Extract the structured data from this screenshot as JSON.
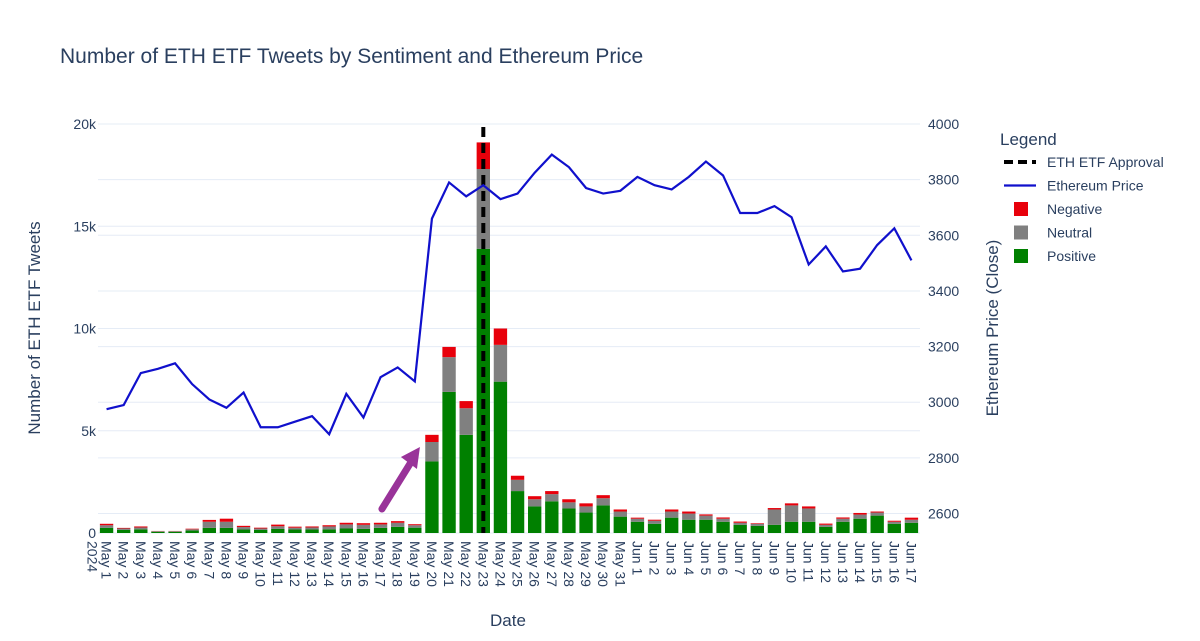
{
  "chart_data": {
    "type": "bar",
    "title": "Number of ETH ETF Tweets by Sentiment and Ethereum Price",
    "xlabel": "Date",
    "ylabel": "Number of ETH ETF Tweets",
    "y2label": "Ethereum Price (Close)",
    "ylim": [
      0,
      20000
    ],
    "y2lim": [
      2530,
      4000
    ],
    "yticks": [
      0,
      5000,
      10000,
      15000,
      20000
    ],
    "yticklabels": [
      "0",
      "5k",
      "10k",
      "15k",
      "20k"
    ],
    "y2ticks": [
      2600,
      2800,
      3000,
      3200,
      3400,
      3600,
      3800,
      4000
    ],
    "barmode": "stack",
    "categories": [
      "May 1\n2024",
      "May 2",
      "May 3",
      "May 4",
      "May 5",
      "May 6",
      "May 7",
      "May 8",
      "May 9",
      "May 10",
      "May 11",
      "May 12",
      "May 13",
      "May 14",
      "May 15",
      "May 16",
      "May 17",
      "May 18",
      "May 19",
      "May 20",
      "May 21",
      "May 22",
      "May 23",
      "May 24",
      "May 25",
      "May 26",
      "May 27",
      "May 28",
      "May 29",
      "May 30",
      "May 31",
      "Jun 1",
      "Jun 2",
      "Jun 3",
      "Jun 4",
      "Jun 5",
      "Jun 6",
      "Jun 7",
      "Jun 8",
      "Jun 9",
      "Jun 10",
      "Jun 11",
      "Jun 12",
      "Jun 13",
      "Jun 14",
      "Jun 15",
      "Jun 16",
      "Jun 17"
    ],
    "series": [
      {
        "name": "Positive",
        "color": "#008000",
        "values": [
          250,
          150,
          180,
          60,
          60,
          120,
          250,
          250,
          170,
          150,
          200,
          170,
          170,
          180,
          220,
          200,
          250,
          300,
          260,
          3500,
          6900,
          4800,
          13900,
          7400,
          2050,
          1300,
          1550,
          1200,
          1000,
          1350,
          800,
          550,
          450,
          750,
          650,
          650,
          550,
          400,
          350,
          400,
          550,
          550,
          300,
          550,
          700,
          850,
          450,
          500
        ]
      },
      {
        "name": "Neutral",
        "color": "#808080",
        "values": [
          130,
          70,
          90,
          30,
          30,
          60,
          300,
          300,
          120,
          70,
          130,
          90,
          100,
          140,
          200,
          200,
          170,
          200,
          120,
          950,
          1700,
          1300,
          3900,
          1800,
          550,
          350,
          350,
          300,
          300,
          350,
          250,
          150,
          150,
          300,
          300,
          200,
          150,
          100,
          100,
          750,
          800,
          650,
          100,
          150,
          200,
          150,
          100,
          150
        ]
      },
      {
        "name": "Negative",
        "color": "#e8000b",
        "values": [
          70,
          30,
          50,
          10,
          10,
          30,
          90,
          150,
          60,
          40,
          80,
          50,
          50,
          60,
          80,
          80,
          80,
          80,
          50,
          350,
          500,
          350,
          1300,
          800,
          200,
          150,
          150,
          150,
          150,
          150,
          100,
          50,
          50,
          100,
          100,
          60,
          60,
          60,
          30,
          70,
          100,
          100,
          60,
          60,
          80,
          50,
          50,
          100
        ]
      }
    ],
    "line": {
      "name": "Ethereum Price",
      "color": "#1010cc",
      "values": [
        2975,
        2990,
        3105,
        3120,
        3140,
        3065,
        3010,
        2980,
        3035,
        2910,
        2910,
        2930,
        2950,
        2885,
        3030,
        2945,
        3090,
        3125,
        3075,
        3660,
        3790,
        3740,
        3780,
        3730,
        3750,
        3825,
        3890,
        3845,
        3770,
        3750,
        3760,
        3810,
        3780,
        3765,
        3810,
        3865,
        3815,
        3680,
        3680,
        3705,
        3665,
        3495,
        3560,
        3470,
        3480,
        3565,
        3625,
        3510
      ]
    },
    "vline": {
      "name": "ETH ETF Approval",
      "category": "May 23",
      "color": "#000000"
    },
    "legend": {
      "title": "Legend",
      "placement": "right",
      "items": [
        "ETH ETF Approval",
        "Ethereum Price",
        "Negative",
        "Neutral",
        "Positive"
      ]
    },
    "annotation": {
      "type": "arrow",
      "color": "#993399",
      "target": "May 20"
    },
    "grid": true
  }
}
